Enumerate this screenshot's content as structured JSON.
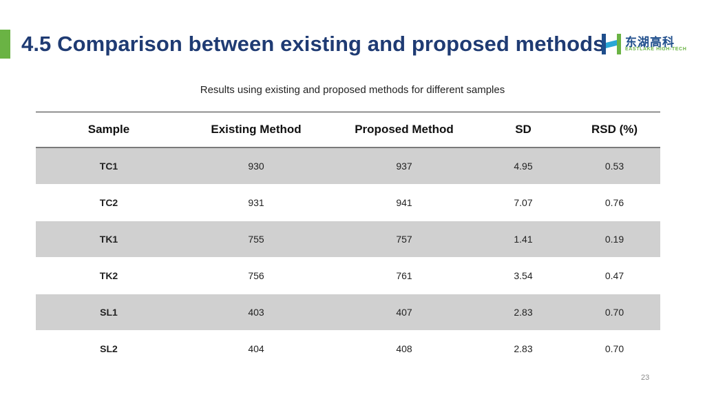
{
  "header": {
    "title": "4.5  Comparison between existing and proposed methods",
    "accent_color": "#6ab344",
    "title_color": "#1f3b73"
  },
  "logo": {
    "cn_text": "东湖高科",
    "en_text": "EASTLAKE HIGH-TECH"
  },
  "caption": "Results using existing and proposed methods for different samples",
  "table": {
    "columns": [
      "Sample",
      "Existing Method",
      "Proposed Method",
      "SD",
      "RSD (%)"
    ],
    "rows": [
      [
        "TC1",
        "930",
        "937",
        "4.95",
        "0.53"
      ],
      [
        "TC2",
        "931",
        "941",
        "7.07",
        "0.76"
      ],
      [
        "TK1",
        "755",
        "757",
        "1.41",
        "0.19"
      ],
      [
        "TK2",
        "756",
        "761",
        "3.54",
        "0.47"
      ],
      [
        "SL1",
        "403",
        "407",
        "2.83",
        "0.70"
      ],
      [
        "SL2",
        "404",
        "408",
        "2.83",
        "0.70"
      ]
    ]
  },
  "footer": {
    "page_number": "23"
  }
}
